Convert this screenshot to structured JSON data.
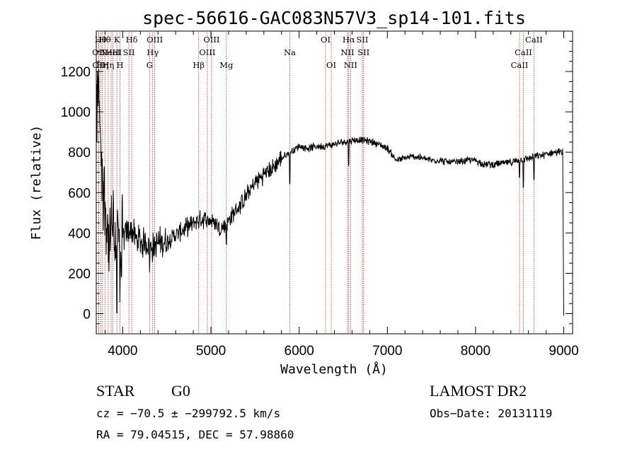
{
  "chart_data": {
    "type": "line",
    "title": "spec-56616-GAC083N57V3_sp14-101.fits",
    "xlabel": "Wavelength (Å)",
    "ylabel": "Flux (relative)",
    "xlim": [
      3700,
      9100
    ],
    "ylim": [
      -100,
      1400
    ],
    "xticks": [
      4000,
      5000,
      6000,
      7000,
      8000,
      9000
    ],
    "yticks": [
      0,
      200,
      400,
      600,
      800,
      1000,
      1200
    ],
    "spectrum_anchors": [
      [
        3700,
        850
      ],
      [
        3710,
        1050
      ],
      [
        3730,
        1150
      ],
      [
        3760,
        750
      ],
      [
        3790,
        600
      ],
      [
        3820,
        450
      ],
      [
        3850,
        300
      ],
      [
        3880,
        450
      ],
      [
        3910,
        350
      ],
      [
        3940,
        420
      ],
      [
        3970,
        300
      ],
      [
        4000,
        380
      ],
      [
        4050,
        400
      ],
      [
        4100,
        420
      ],
      [
        4150,
        370
      ],
      [
        4200,
        360
      ],
      [
        4250,
        350
      ],
      [
        4300,
        340
      ],
      [
        4350,
        330
      ],
      [
        4400,
        350
      ],
      [
        4500,
        360
      ],
      [
        4600,
        390
      ],
      [
        4700,
        420
      ],
      [
        4800,
        450
      ],
      [
        4900,
        470
      ],
      [
        5000,
        460
      ],
      [
        5050,
        450
      ],
      [
        5100,
        420
      ],
      [
        5150,
        430
      ],
      [
        5200,
        460
      ],
      [
        5300,
        520
      ],
      [
        5400,
        580
      ],
      [
        5500,
        650
      ],
      [
        5600,
        690
      ],
      [
        5700,
        720
      ],
      [
        5800,
        770
      ],
      [
        5900,
        800
      ],
      [
        6000,
        830
      ],
      [
        6100,
        820
      ],
      [
        6200,
        830
      ],
      [
        6300,
        830
      ],
      [
        6400,
        840
      ],
      [
        6500,
        850
      ],
      [
        6600,
        860
      ],
      [
        6700,
        860
      ],
      [
        6800,
        855
      ],
      [
        6900,
        840
      ],
      [
        7000,
        820
      ],
      [
        7100,
        760
      ],
      [
        7200,
        770
      ],
      [
        7300,
        780
      ],
      [
        7400,
        770
      ],
      [
        7500,
        760
      ],
      [
        7600,
        760
      ],
      [
        7700,
        750
      ],
      [
        7800,
        750
      ],
      [
        7900,
        760
      ],
      [
        8000,
        760
      ],
      [
        8100,
        740
      ],
      [
        8200,
        740
      ],
      [
        8300,
        745
      ],
      [
        8400,
        750
      ],
      [
        8500,
        760
      ],
      [
        8600,
        770
      ],
      [
        8700,
        780
      ],
      [
        8800,
        790
      ],
      [
        8900,
        800
      ],
      [
        8990,
        800
      ]
    ],
    "lines": [
      {
        "wave": 3727,
        "label": "OII",
        "row": 1
      },
      {
        "wave": 3729,
        "label": "OII",
        "row": 2
      },
      {
        "wave": 3750,
        "label": "Hθ",
        "row": 0
      },
      {
        "wave": 3770,
        "label": "Hη",
        "row": 2
      },
      {
        "wave": 3798,
        "label": "Hθ",
        "row": 0
      },
      {
        "wave": 3835,
        "label": "Hη",
        "row": 2
      },
      {
        "wave": 3869,
        "label": "NeIII",
        "row": 1
      },
      {
        "wave": 3889,
        "label": "HeI",
        "row": 1
      },
      {
        "wave": 3934,
        "label": "K",
        "row": 0
      },
      {
        "wave": 3969,
        "label": "H",
        "row": 2
      },
      {
        "wave": 4070,
        "label": "SII",
        "row": 1
      },
      {
        "wave": 4102,
        "label": "Hδ",
        "row": 0
      },
      {
        "wave": 4305,
        "label": "G",
        "row": 2
      },
      {
        "wave": 4340,
        "label": "Hγ",
        "row": 1
      },
      {
        "wave": 4363,
        "label": "OIII",
        "row": 0
      },
      {
        "wave": 4861,
        "label": "Hβ",
        "row": 2
      },
      {
        "wave": 4959,
        "label": "OIII",
        "row": 1
      },
      {
        "wave": 5007,
        "label": "OIII",
        "row": 0
      },
      {
        "wave": 5175,
        "label": "Mg",
        "row": 2
      },
      {
        "wave": 5894,
        "label": "Na",
        "row": 1
      },
      {
        "wave": 6300,
        "label": "OI",
        "row": 0
      },
      {
        "wave": 6364,
        "label": "OI",
        "row": 2
      },
      {
        "wave": 6548,
        "label": "NII",
        "row": 1
      },
      {
        "wave": 6563,
        "label": "Hα",
        "row": 0
      },
      {
        "wave": 6583,
        "label": "NII",
        "row": 2
      },
      {
        "wave": 6716,
        "label": "SII",
        "row": 0
      },
      {
        "wave": 6731,
        "label": "SII",
        "row": 1
      },
      {
        "wave": 8498,
        "label": "CaII",
        "row": 2
      },
      {
        "wave": 8542,
        "label": "CaII",
        "row": 1
      },
      {
        "wave": 8662,
        "label": "CaII",
        "row": 0
      }
    ],
    "line_color": "#b22222"
  },
  "info": {
    "class": "STAR",
    "subclass": "G0",
    "survey": "LAMOST DR2",
    "cz": "cz = −70.5 ± −299792.5 km/s",
    "obs_date": "Obs−Date: 20131119",
    "coords": "RA =  79.04515, DEC =  57.98860"
  }
}
